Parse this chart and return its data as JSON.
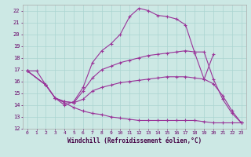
{
  "title": "",
  "xlabel": "Windchill (Refroidissement éolien,°C)",
  "ylabel": "",
  "bg_color": "#cce8e4",
  "grid_color": "#aad4d0",
  "line_color": "#993399",
  "xlim": [
    -0.5,
    23.5
  ],
  "ylim": [
    12,
    22.5
  ],
  "xticks": [
    0,
    1,
    2,
    3,
    4,
    5,
    6,
    7,
    8,
    9,
    10,
    11,
    12,
    13,
    14,
    15,
    16,
    17,
    18,
    19,
    20,
    21,
    22,
    23
  ],
  "yticks": [
    12,
    13,
    14,
    15,
    16,
    17,
    18,
    19,
    20,
    21,
    22
  ],
  "series": [
    {
      "x": [
        0,
        1,
        2,
        3,
        4,
        5,
        6,
        7,
        8,
        9,
        10,
        11,
        12,
        13,
        14,
        15,
        16,
        17,
        18,
        19,
        20
      ],
      "y": [
        16.9,
        16.9,
        15.7,
        14.6,
        14.0,
        14.3,
        15.5,
        17.6,
        18.6,
        19.2,
        20.0,
        21.5,
        22.2,
        22.0,
        21.6,
        21.5,
        21.3,
        20.8,
        18.4,
        16.2,
        18.3
      ]
    },
    {
      "x": [
        0,
        2,
        3,
        4,
        5,
        6,
        7,
        8,
        9,
        10,
        11,
        12,
        13,
        14,
        15,
        16,
        17,
        18,
        19,
        20,
        21,
        22,
        23
      ],
      "y": [
        16.9,
        15.7,
        14.6,
        14.3,
        14.2,
        15.2,
        16.3,
        17.0,
        17.3,
        17.6,
        17.8,
        18.0,
        18.2,
        18.3,
        18.4,
        18.5,
        18.6,
        18.5,
        18.5,
        16.2,
        14.5,
        13.3,
        12.5
      ]
    },
    {
      "x": [
        0,
        2,
        3,
        4,
        5,
        6,
        7,
        8,
        9,
        10,
        11,
        12,
        13,
        14,
        15,
        16,
        17,
        18,
        19,
        20,
        21,
        22,
        23
      ],
      "y": [
        16.9,
        15.7,
        14.6,
        14.3,
        14.2,
        14.5,
        15.2,
        15.5,
        15.7,
        15.9,
        16.0,
        16.1,
        16.2,
        16.3,
        16.4,
        16.4,
        16.4,
        16.3,
        16.2,
        15.8,
        14.8,
        13.5,
        12.5
      ]
    },
    {
      "x": [
        0,
        2,
        3,
        4,
        5,
        6,
        7,
        8,
        9,
        10,
        11,
        12,
        13,
        14,
        15,
        16,
        17,
        18,
        19,
        20,
        21,
        22,
        23
      ],
      "y": [
        16.9,
        15.7,
        14.6,
        14.2,
        13.8,
        13.5,
        13.3,
        13.2,
        13.0,
        12.9,
        12.8,
        12.7,
        12.7,
        12.7,
        12.7,
        12.7,
        12.7,
        12.7,
        12.6,
        12.5,
        12.5,
        12.5,
        12.5
      ]
    }
  ]
}
